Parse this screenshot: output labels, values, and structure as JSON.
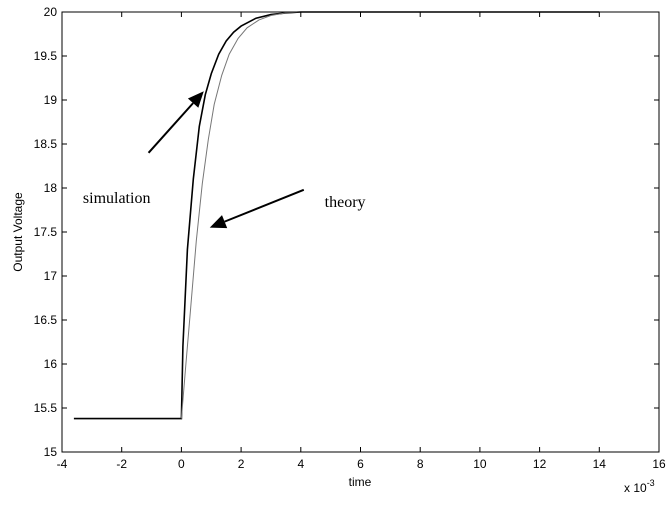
{
  "chart_data": {
    "type": "line",
    "xlabel": "time",
    "ylabel": "Output Voltage",
    "x_multiplier": "x 10",
    "x_multiplier_exp": "-3",
    "xlim": [
      -4,
      16
    ],
    "ylim": [
      15,
      20
    ],
    "xticks": [
      "-4",
      "-2",
      "0",
      "2",
      "4",
      "6",
      "8",
      "10",
      "12",
      "14",
      "16"
    ],
    "yticks": [
      "15",
      "15.5",
      "16",
      "16.5",
      "17",
      "17.5",
      "18",
      "18.5",
      "19",
      "19.5",
      "20"
    ],
    "grid": false,
    "series": [
      {
        "name": "simulation",
        "color": "#000000",
        "x": [
          -3.6,
          0.0,
          0.05,
          0.2,
          0.4,
          0.6,
          0.8,
          1.0,
          1.25,
          1.5,
          1.75,
          2.0,
          2.5,
          3.0,
          3.5,
          4.0,
          5.0,
          6.0,
          8.0,
          10.0,
          12.0,
          14.0
        ],
        "y": [
          15.38,
          15.38,
          16.2,
          17.3,
          18.1,
          18.7,
          19.06,
          19.3,
          19.52,
          19.67,
          19.77,
          19.84,
          19.93,
          19.97,
          19.99,
          20.0,
          20.0,
          20.0,
          20.0,
          20.0,
          20.0,
          20.0
        ]
      },
      {
        "name": "theory",
        "color": "#777777",
        "x": [
          0.0,
          0.15,
          0.3,
          0.5,
          0.7,
          0.9,
          1.1,
          1.35,
          1.6,
          1.9,
          2.2,
          2.6,
          3.0,
          3.5,
          4.0,
          5.0
        ],
        "y": [
          15.38,
          16.0,
          16.6,
          17.4,
          18.05,
          18.55,
          18.95,
          19.28,
          19.52,
          19.7,
          19.82,
          19.91,
          19.96,
          19.99,
          20.0,
          20.0
        ]
      }
    ],
    "annotations": [
      {
        "text": "simulation",
        "x": -3.3,
        "y": 17.9,
        "arrow_from": [
          -1.1,
          18.4
        ],
        "arrow_to": [
          0.75,
          19.1
        ]
      },
      {
        "text": "theory",
        "x": 4.8,
        "y": 17.85,
        "arrow_from": [
          4.1,
          17.98
        ],
        "arrow_to": [
          0.95,
          17.55
        ]
      }
    ]
  }
}
